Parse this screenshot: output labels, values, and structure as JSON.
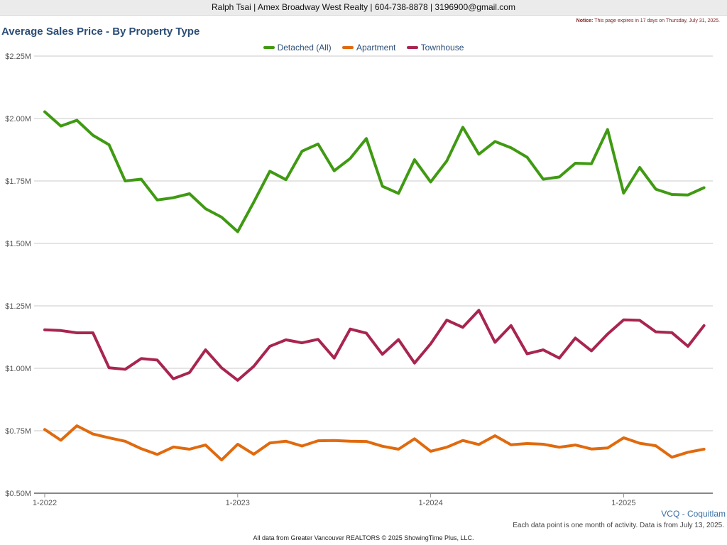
{
  "header": {
    "contact": "Ralph Tsai | Amex Broadway West Realty | 604-738-8878 | 3196900@gmail.com"
  },
  "notice": {
    "label": "Notice:",
    "text": "This page expires in 17 days on Thursday, July 31, 2025."
  },
  "region": "VCQ - Coquitlam",
  "footnote": "Each data point is one month of activity. Data is from July 13, 2025.",
  "footer": "All data from Greater Vancouver REALTORS © 2025 ShowingTime Plus, LLC.",
  "chart_data": {
    "type": "line",
    "title": "Average Sales Price - By Property Type",
    "legend_position": "top-center",
    "grid": true,
    "ylim": [
      500000,
      2250000
    ],
    "yticks": [
      {
        "value": 500000,
        "label": "$0.50M"
      },
      {
        "value": 750000,
        "label": "$0.75M"
      },
      {
        "value": 1000000,
        "label": "$1.00M"
      },
      {
        "value": 1250000,
        "label": "$1.25M"
      },
      {
        "value": 1500000,
        "label": "$1.50M"
      },
      {
        "value": 1750000,
        "label": "$1.75M"
      },
      {
        "value": 2000000,
        "label": "$2.00M"
      },
      {
        "value": 2250000,
        "label": "$2.25M"
      }
    ],
    "xticks": [
      {
        "value": "2022-01",
        "label": "1-2022"
      },
      {
        "value": "2023-01",
        "label": "1-2023"
      },
      {
        "value": "2024-01",
        "label": "1-2024"
      },
      {
        "value": "2025-01",
        "label": "1-2025"
      }
    ],
    "x": [
      "2022-01",
      "2022-02",
      "2022-03",
      "2022-04",
      "2022-05",
      "2022-06",
      "2022-07",
      "2022-08",
      "2022-09",
      "2022-10",
      "2022-11",
      "2022-12",
      "2023-01",
      "2023-02",
      "2023-03",
      "2023-04",
      "2023-05",
      "2023-06",
      "2023-07",
      "2023-08",
      "2023-09",
      "2023-10",
      "2023-11",
      "2023-12",
      "2024-01",
      "2024-02",
      "2024-03",
      "2024-04",
      "2024-05",
      "2024-06",
      "2024-07",
      "2024-08",
      "2024-09",
      "2024-10",
      "2024-11",
      "2024-12",
      "2025-01",
      "2025-02",
      "2025-03",
      "2025-04",
      "2025-05",
      "2025-06"
    ],
    "series": [
      {
        "name": "Detached (All)",
        "color": "#3f9a12",
        "values": [
          2027000,
          1970000,
          1993000,
          1933000,
          1895000,
          1750000,
          1757000,
          1674000,
          1683000,
          1699000,
          1639000,
          1605000,
          1547000,
          1665000,
          1789000,
          1755000,
          1869000,
          1898000,
          1791000,
          1840000,
          1920000,
          1729000,
          1700000,
          1835000,
          1746000,
          1830000,
          1965000,
          1857000,
          1908000,
          1883000,
          1845000,
          1757000,
          1766000,
          1821000,
          1819000,
          1956000,
          1701000,
          1804000,
          1717000,
          1696000,
          1694000,
          1723000
        ]
      },
      {
        "name": "Apartment",
        "color": "#e06a0e",
        "values": [
          755000,
          712000,
          770000,
          737000,
          722000,
          708000,
          678000,
          655000,
          685000,
          676000,
          693000,
          633000,
          696000,
          656000,
          701000,
          708000,
          689000,
          710000,
          711000,
          708000,
          707000,
          688000,
          676000,
          718000,
          668000,
          684000,
          711000,
          695000,
          730000,
          694000,
          699000,
          696000,
          684000,
          693000,
          677000,
          681000,
          722000,
          700000,
          690000,
          644000,
          664000,
          676000
        ]
      },
      {
        "name": "Townhouse",
        "color": "#a8254f",
        "values": [
          1154000,
          1151000,
          1142000,
          1142000,
          1002000,
          996000,
          1039000,
          1033000,
          958000,
          983000,
          1074000,
          1002000,
          952000,
          1008000,
          1088000,
          1114000,
          1102000,
          1116000,
          1041000,
          1157000,
          1141000,
          1056000,
          1115000,
          1021000,
          1098000,
          1193000,
          1164000,
          1232000,
          1104000,
          1171000,
          1058000,
          1074000,
          1041000,
          1121000,
          1070000,
          1137000,
          1194000,
          1192000,
          1146000,
          1143000,
          1088000,
          1171000
        ]
      }
    ]
  }
}
